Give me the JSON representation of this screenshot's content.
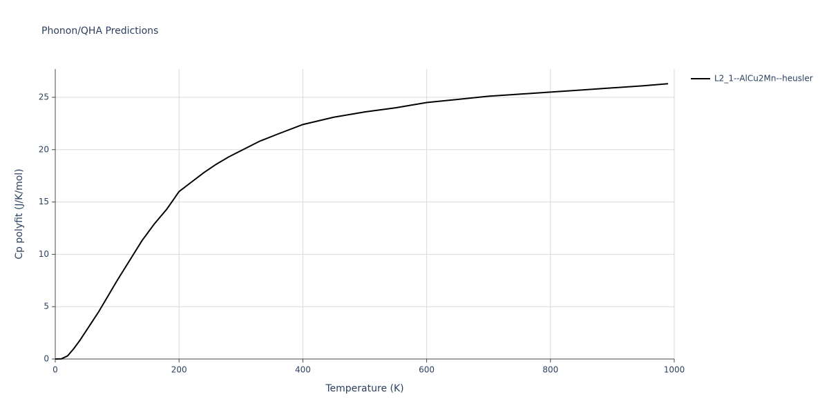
{
  "chart_data": {
    "type": "line",
    "title": "Phonon/QHA Predictions",
    "x_label": "Temperature (K)",
    "y_label": "Cp polyfit (J/K/mol)",
    "x": [
      0,
      10,
      20,
      30,
      40,
      50,
      60,
      70,
      80,
      100,
      120,
      140,
      160,
      180,
      200,
      220,
      240,
      260,
      280,
      300,
      330,
      360,
      400,
      450,
      500,
      550,
      600,
      650,
      700,
      750,
      800,
      850,
      900,
      950,
      990
    ],
    "series": [
      {
        "name": "L2_1--AlCu2Mn--heusler",
        "color": "#000000",
        "values": [
          0,
          0.02,
          0.3,
          1.0,
          1.8,
          2.7,
          3.6,
          4.5,
          5.5,
          7.5,
          9.4,
          11.3,
          12.9,
          14.3,
          16.0,
          16.9,
          17.8,
          18.6,
          19.3,
          19.9,
          20.8,
          21.5,
          22.4,
          23.1,
          23.6,
          24.0,
          24.5,
          24.8,
          25.1,
          25.3,
          25.5,
          25.7,
          25.9,
          26.1,
          26.3
        ]
      }
    ],
    "xlim": [
      0,
      1000
    ],
    "xticks": [
      0,
      200,
      400,
      600,
      800,
      1000
    ],
    "ylim": [
      0,
      27.7
    ],
    "yticks": [
      0,
      5,
      10,
      15,
      20,
      25
    ],
    "grid": true,
    "legend": "right"
  }
}
